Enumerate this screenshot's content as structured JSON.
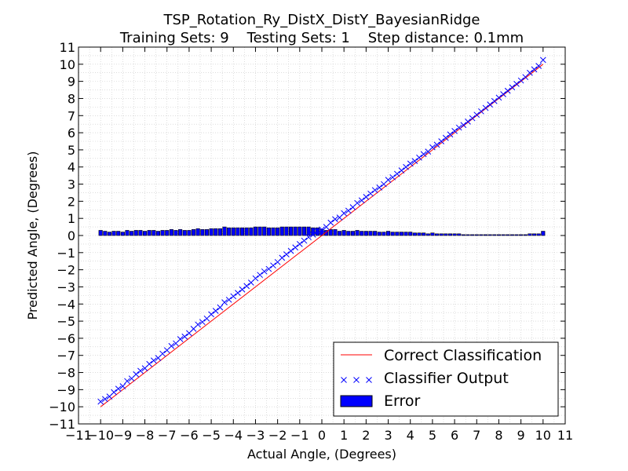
{
  "chart_data": {
    "type": "line",
    "title": "TSP_Rotation_Ry_DistX_DistY_BayesianRidge",
    "subtitle": "Training Sets: 9    Testing Sets: 1    Step distance: 0.1mm",
    "xlabel": "Actual Angle, (Degrees)",
    "ylabel": "Predicted Angle, (Degrees)",
    "xlim": [
      -11,
      11
    ],
    "ylim": [
      -11,
      11
    ],
    "xticks": [
      "−11",
      "−10",
      "−9",
      "−8",
      "−7",
      "−6",
      "−5",
      "−4",
      "−3",
      "−2",
      "−1",
      "0",
      "1",
      "2",
      "3",
      "4",
      "5",
      "6",
      "7",
      "8",
      "9",
      "10",
      "11"
    ],
    "yticks": [
      "−11",
      "−10",
      "−9",
      "−8",
      "−7",
      "−6",
      "−5",
      "−4",
      "−3",
      "−2",
      "−1",
      "0",
      "1",
      "2",
      "3",
      "4",
      "5",
      "6",
      "7",
      "8",
      "9",
      "10",
      "11"
    ],
    "grid": true,
    "legend_position": "lower-right",
    "series": [
      {
        "name": "Correct Classification",
        "kind": "line",
        "color": "#ff0000",
        "x": [
          -10,
          10
        ],
        "y": [
          -10,
          10
        ]
      },
      {
        "name": "Classifier Output",
        "kind": "scatter",
        "marker": "x",
        "color": "#0000ff",
        "x": [
          -10.0,
          -9.8,
          -9.6,
          -9.4,
          -9.2,
          -9.0,
          -8.8,
          -8.6,
          -8.4,
          -8.2,
          -8.0,
          -7.8,
          -7.6,
          -7.4,
          -7.2,
          -7.0,
          -6.8,
          -6.6,
          -6.4,
          -6.2,
          -6.0,
          -5.8,
          -5.6,
          -5.4,
          -5.2,
          -5.0,
          -4.8,
          -4.6,
          -4.4,
          -4.2,
          -4.0,
          -3.8,
          -3.6,
          -3.4,
          -3.2,
          -3.0,
          -2.8,
          -2.6,
          -2.4,
          -2.2,
          -2.0,
          -1.8,
          -1.6,
          -1.4,
          -1.2,
          -1.0,
          -0.8,
          -0.6,
          -0.4,
          -0.2,
          0.0,
          0.2,
          0.4,
          0.6,
          0.8,
          1.0,
          1.2,
          1.4,
          1.6,
          1.8,
          2.0,
          2.2,
          2.4,
          2.6,
          2.8,
          3.0,
          3.2,
          3.4,
          3.6,
          3.8,
          4.0,
          4.2,
          4.4,
          4.6,
          4.8,
          5.0,
          5.2,
          5.4,
          5.6,
          5.8,
          6.0,
          6.2,
          6.4,
          6.6,
          6.8,
          7.0,
          7.2,
          7.4,
          7.6,
          7.8,
          8.0,
          8.2,
          8.4,
          8.6,
          8.8,
          9.0,
          9.2,
          9.4,
          9.6,
          9.8,
          10.0
        ],
        "y": [
          -9.7,
          -9.55,
          -9.4,
          -9.15,
          -8.95,
          -8.8,
          -8.5,
          -8.35,
          -8.1,
          -7.9,
          -7.75,
          -7.5,
          -7.3,
          -7.15,
          -6.9,
          -6.7,
          -6.45,
          -6.3,
          -6.05,
          -5.9,
          -5.7,
          -5.45,
          -5.2,
          -5.05,
          -4.85,
          -4.6,
          -4.4,
          -4.2,
          -3.9,
          -3.75,
          -3.55,
          -3.35,
          -3.15,
          -2.95,
          -2.75,
          -2.5,
          -2.3,
          -2.1,
          -1.95,
          -1.75,
          -1.55,
          -1.3,
          -1.1,
          -0.9,
          -0.7,
          -0.5,
          -0.3,
          -0.1,
          0.05,
          0.25,
          0.35,
          0.5,
          0.75,
          0.95,
          1.05,
          1.3,
          1.45,
          1.65,
          1.9,
          2.05,
          2.25,
          2.45,
          2.65,
          2.8,
          3.0,
          3.25,
          3.4,
          3.6,
          3.8,
          4.0,
          4.2,
          4.35,
          4.55,
          4.75,
          4.9,
          5.15,
          5.3,
          5.5,
          5.7,
          5.9,
          6.1,
          6.3,
          6.45,
          6.65,
          6.85,
          7.05,
          7.25,
          7.45,
          7.65,
          7.85,
          8.05,
          8.25,
          8.45,
          8.65,
          8.85,
          9.05,
          9.25,
          9.5,
          9.7,
          9.9,
          10.25
        ]
      },
      {
        "name": "Error",
        "kind": "bar",
        "color": "#0000ff",
        "x": [
          -10.0,
          -9.8,
          -9.6,
          -9.4,
          -9.2,
          -9.0,
          -8.8,
          -8.6,
          -8.4,
          -8.2,
          -8.0,
          -7.8,
          -7.6,
          -7.4,
          -7.2,
          -7.0,
          -6.8,
          -6.6,
          -6.4,
          -6.2,
          -6.0,
          -5.8,
          -5.6,
          -5.4,
          -5.2,
          -5.0,
          -4.8,
          -4.6,
          -4.4,
          -4.2,
          -4.0,
          -3.8,
          -3.6,
          -3.4,
          -3.2,
          -3.0,
          -2.8,
          -2.6,
          -2.4,
          -2.2,
          -2.0,
          -1.8,
          -1.6,
          -1.4,
          -1.2,
          -1.0,
          -0.8,
          -0.6,
          -0.4,
          -0.2,
          0.0,
          0.2,
          0.4,
          0.6,
          0.8,
          1.0,
          1.2,
          1.4,
          1.6,
          1.8,
          2.0,
          2.2,
          2.4,
          2.6,
          2.8,
          3.0,
          3.2,
          3.4,
          3.6,
          3.8,
          4.0,
          4.2,
          4.4,
          4.6,
          4.8,
          5.0,
          5.2,
          5.4,
          5.6,
          5.8,
          6.0,
          6.2,
          6.4,
          6.6,
          6.8,
          7.0,
          7.2,
          7.4,
          7.6,
          7.8,
          8.0,
          8.2,
          8.4,
          8.6,
          8.8,
          9.0,
          9.2,
          9.4,
          9.6,
          9.8,
          10.0
        ],
        "y": [
          0.3,
          0.25,
          0.2,
          0.25,
          0.25,
          0.2,
          0.3,
          0.25,
          0.3,
          0.3,
          0.25,
          0.3,
          0.3,
          0.25,
          0.3,
          0.3,
          0.35,
          0.3,
          0.35,
          0.3,
          0.3,
          0.35,
          0.4,
          0.35,
          0.35,
          0.4,
          0.4,
          0.4,
          0.5,
          0.45,
          0.45,
          0.45,
          0.45,
          0.45,
          0.45,
          0.5,
          0.5,
          0.5,
          0.45,
          0.45,
          0.45,
          0.5,
          0.5,
          0.5,
          0.5,
          0.5,
          0.5,
          0.5,
          0.45,
          0.45,
          0.35,
          0.3,
          0.35,
          0.35,
          0.25,
          0.3,
          0.25,
          0.25,
          0.3,
          0.25,
          0.25,
          0.25,
          0.25,
          0.2,
          0.2,
          0.25,
          0.2,
          0.2,
          0.2,
          0.2,
          0.2,
          0.15,
          0.15,
          0.15,
          0.1,
          0.15,
          0.1,
          0.1,
          0.1,
          0.1,
          0.1,
          0.1,
          0.05,
          0.05,
          0.05,
          0.05,
          0.05,
          0.05,
          0.05,
          0.05,
          0.05,
          0.05,
          0.05,
          0.05,
          0.05,
          0.05,
          0.05,
          0.1,
          0.1,
          0.1,
          0.25
        ]
      }
    ]
  }
}
